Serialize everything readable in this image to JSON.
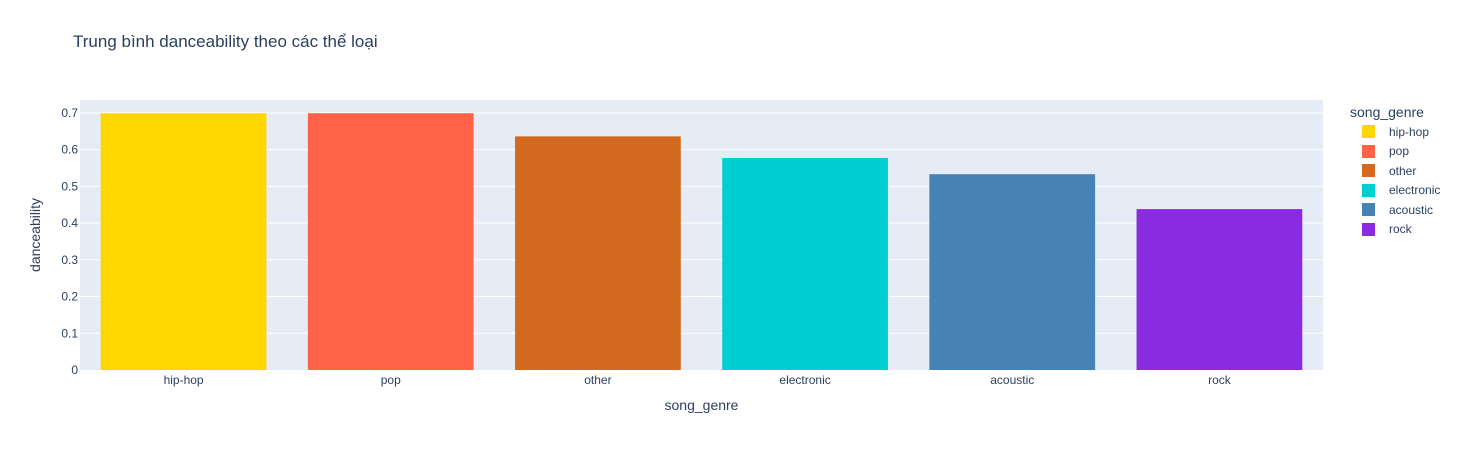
{
  "chart_data": {
    "type": "bar",
    "title": "Trung bình danceability theo các thể loại",
    "xlabel": "song_genre",
    "ylabel": "danceability",
    "categories": [
      "hip-hop",
      "pop",
      "other",
      "electronic",
      "acoustic",
      "rock"
    ],
    "values": [
      0.699,
      0.699,
      0.636,
      0.577,
      0.533,
      0.438
    ],
    "colors": [
      "#FFD700",
      "#FF6347",
      "#D2691E",
      "#00CED1",
      "#4682B4",
      "#8A2BE2"
    ],
    "ylim": [
      0,
      0.735
    ],
    "yticks": [
      0,
      0.1,
      0.2,
      0.3,
      0.4,
      0.5,
      0.6,
      0.7
    ],
    "ytick_labels": [
      "0",
      "0.1",
      "0.2",
      "0.3",
      "0.4",
      "0.5",
      "0.6",
      "0.7"
    ],
    "grid": true,
    "plot_bgcolor": "#E5ECF6",
    "legend": {
      "title": "song_genre",
      "placement": "right",
      "entries": [
        "hip-hop",
        "pop",
        "other",
        "electronic",
        "acoustic",
        "rock"
      ]
    }
  }
}
